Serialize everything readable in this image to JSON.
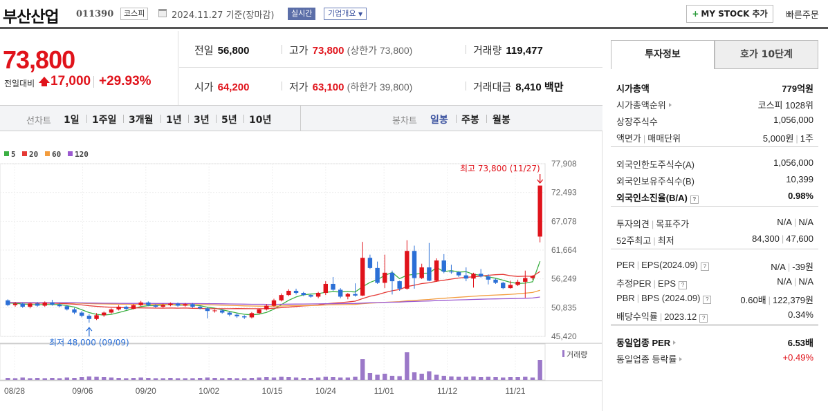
{
  "header": {
    "title": "부산산업",
    "code": "011390",
    "market": "코스피",
    "date_text": "2024.11.27  기준(장마감)",
    "realtime_label": "실시간",
    "company_label": "기업개요",
    "mystock_label": "MY STOCK 추가",
    "quick_order_label": "빠른주문"
  },
  "summary": {
    "price": "73,800",
    "change_label": "전일대비",
    "change_value": "17,000",
    "change_pct": "+29.93%",
    "prev_close_label": "전일",
    "prev_close": "56,800",
    "high_label": "고가",
    "high": "73,800",
    "upper_limit": "(상한가 73,800)",
    "volume_label": "거래량",
    "volume": "119,477",
    "open_label": "시가",
    "open": "64,200",
    "low_label": "저가",
    "low": "63,100",
    "lower_limit": "(하한가 39,800)",
    "amount_label": "거래대금",
    "amount": "8,410",
    "amount_unit": "백만"
  },
  "period_bar": {
    "line_label": "선차트",
    "line_items": [
      "1일",
      "1주일",
      "3개월",
      "1년",
      "3년",
      "5년",
      "10년"
    ],
    "candle_label": "봉차트",
    "candle_items": [
      "일봉",
      "주봉",
      "월봉"
    ],
    "active_candle": "일봉"
  },
  "chart_data": {
    "type": "candlestick",
    "legend": [
      {
        "name": "5",
        "color": "#3cb043"
      },
      {
        "name": "20",
        "color": "#e53935"
      },
      {
        "name": "60",
        "color": "#f39c3d"
      },
      {
        "name": "120",
        "color": "#9b59d0"
      }
    ],
    "y_ticks": [
      "77,908",
      "72,493",
      "67,078",
      "61,664",
      "56,249",
      "50,835",
      "45,420"
    ],
    "ylim": [
      45420,
      77908
    ],
    "x_ticks": [
      "08/28",
      "09/06",
      "09/20",
      "10/02",
      "10/15",
      "10/24",
      "11/01",
      "11/12",
      "11/21"
    ],
    "max_annotation": "최고 73,800 (11/27)",
    "min_annotation": "최저 48,000 (09/09)",
    "volume_label": "거래량",
    "candles": [
      [
        52200,
        51300,
        52400,
        51100
      ],
      [
        51300,
        51600,
        51900,
        51000
      ],
      [
        51600,
        51000,
        51800,
        50800
      ],
      [
        51000,
        51600,
        51800,
        50700
      ],
      [
        51600,
        51200,
        51900,
        51000
      ],
      [
        51200,
        51800,
        52000,
        51000
      ],
      [
        51800,
        51400,
        52300,
        51200
      ],
      [
        51400,
        51100,
        51700,
        50900
      ],
      [
        51100,
        50500,
        51300,
        50300
      ],
      [
        50500,
        49900,
        50800,
        49600
      ],
      [
        49900,
        49300,
        50200,
        49000
      ],
      [
        49300,
        48700,
        49600,
        48000
      ],
      [
        48700,
        49400,
        49800,
        48500
      ],
      [
        49400,
        49900,
        50100,
        49100
      ],
      [
        49900,
        50500,
        50700,
        49700
      ],
      [
        50500,
        51000,
        51300,
        50300
      ],
      [
        51000,
        50600,
        51200,
        50400
      ],
      [
        50600,
        51300,
        51500,
        50500
      ],
      [
        51300,
        51800,
        52100,
        51100
      ],
      [
        51800,
        51300,
        52000,
        51100
      ],
      [
        51300,
        51000,
        51500,
        50800
      ],
      [
        51000,
        51300,
        51600,
        50800
      ],
      [
        51300,
        51600,
        51800,
        51100
      ],
      [
        51600,
        51200,
        51800,
        51000
      ],
      [
        51200,
        51500,
        51700,
        51000
      ],
      [
        51500,
        51000,
        51700,
        50800
      ],
      [
        51000,
        50700,
        51200,
        50500
      ],
      [
        50700,
        50200,
        50900,
        48800
      ],
      [
        50200,
        50300,
        50500,
        49900
      ],
      [
        50300,
        49900,
        50500,
        49700
      ],
      [
        49900,
        49500,
        50100,
        49200
      ],
      [
        49500,
        49200,
        49800,
        48900
      ],
      [
        49200,
        49000,
        49400,
        48700
      ],
      [
        49000,
        49800,
        50000,
        48800
      ],
      [
        49800,
        50500,
        50700,
        49600
      ],
      [
        50500,
        51200,
        51500,
        50300
      ],
      [
        51200,
        52200,
        52500,
        51000
      ],
      [
        52200,
        53200,
        53500,
        52000
      ],
      [
        53200,
        54000,
        54300,
        53000
      ],
      [
        54000,
        53600,
        54400,
        53300
      ],
      [
        53600,
        53200,
        53800,
        53000
      ],
      [
        53200,
        52900,
        53400,
        52700
      ],
      [
        52900,
        53600,
        53800,
        52600
      ],
      [
        53600,
        55300,
        55800,
        53200
      ],
      [
        55300,
        54200,
        56600,
        54000
      ],
      [
        54200,
        52900,
        54500,
        52600
      ],
      [
        52900,
        53400,
        53600,
        52400
      ],
      [
        53400,
        53100,
        55400,
        52900
      ],
      [
        53100,
        60200,
        63200,
        53000
      ],
      [
        60200,
        58300,
        60800,
        58100
      ],
      [
        58300,
        55500,
        59500,
        55300
      ],
      [
        55500,
        57400,
        60800,
        54500
      ],
      [
        57400,
        55800,
        57800,
        53300
      ],
      [
        55800,
        54400,
        55900,
        54000
      ],
      [
        54400,
        61500,
        63500,
        54200
      ],
      [
        61500,
        56400,
        62500,
        54400
      ],
      [
        56400,
        58400,
        59100,
        56200
      ],
      [
        58400,
        55900,
        63000,
        55800
      ],
      [
        55900,
        59700,
        60100,
        55700
      ],
      [
        59700,
        57600,
        60900,
        57300
      ],
      [
        57600,
        57500,
        58900,
        57200
      ],
      [
        57500,
        56900,
        57700,
        56600
      ],
      [
        56900,
        56300,
        58400,
        55800
      ],
      [
        56300,
        57200,
        57400,
        54600
      ],
      [
        57200,
        56700,
        58100,
        56500
      ],
      [
        56700,
        56100,
        57100,
        55200
      ],
      [
        56100,
        55500,
        56300,
        55300
      ],
      [
        55500,
        54500,
        55700,
        54300
      ],
      [
        54500,
        55100,
        55900,
        54400
      ],
      [
        55100,
        55700,
        56100,
        54900
      ],
      [
        55700,
        56400,
        57800,
        52700
      ],
      [
        56400,
        56800,
        56900,
        56100
      ],
      [
        64200,
        73800,
        73800,
        63100
      ]
    ],
    "volumes": [
      6,
      5,
      7,
      5,
      6,
      5,
      6,
      5,
      7,
      6,
      8,
      10,
      9,
      8,
      7,
      6,
      5,
      6,
      7,
      6,
      5,
      5,
      6,
      5,
      5,
      5,
      6,
      7,
      6,
      5,
      6,
      5,
      5,
      6,
      7,
      8,
      7,
      9,
      8,
      7,
      6,
      6,
      7,
      9,
      8,
      7,
      7,
      9,
      60,
      20,
      15,
      18,
      12,
      11,
      80,
      22,
      18,
      25,
      15,
      12,
      10,
      9,
      9,
      10,
      8,
      9,
      8,
      7,
      8,
      8,
      9,
      7,
      58
    ]
  },
  "invest": {
    "tab_active": "투자정보",
    "tab_inactive": "호가 10단계",
    "rows": [
      {
        "k": "시가총액",
        "v": "779억원",
        "kb": true,
        "vb": true
      },
      {
        "k": "시가총액순위",
        "v": "코스피 1028위",
        "tri": true
      },
      {
        "k": "상장주식수",
        "v": "1,056,000"
      },
      {
        "k": "액면가",
        "k2": "매매단위",
        "v": "5,000원",
        "v2": "1주"
      },
      {
        "k": "외국인한도주식수(A)",
        "v": "1,056,000"
      },
      {
        "k": "외국인보유주식수(B)",
        "v": "10,399"
      },
      {
        "k": "외국인소진율(B/A)",
        "v": "0.98%",
        "kb": true,
        "vb": true,
        "q": true
      },
      {
        "k": "투자의견",
        "k2": "목표주가",
        "v": "N/A",
        "v2": "N/A"
      },
      {
        "k": "52주최고",
        "k2": "최저",
        "v": "84,300",
        "v2": "47,600"
      },
      {
        "k": "PER",
        "k2": "EPS(2024.09)",
        "v": "N/A",
        "v2": "-39원",
        "q2": true
      },
      {
        "k": "추정PER",
        "k2": "EPS",
        "v": "N/A",
        "v2": "N/A",
        "q2": true
      },
      {
        "k": "PBR",
        "k2": "BPS (2024.09)",
        "v": "0.60배",
        "v2": "122,379원",
        "q2": true
      },
      {
        "k": "배당수익률",
        "k2": "2023.12",
        "v": "0.34%",
        "q2": true
      },
      {
        "k": "동일업종 PER",
        "v": "6.53배",
        "kb": true,
        "vb": true,
        "tri": true
      },
      {
        "k": "동일업종 등락률",
        "v": "+0.49%",
        "red": true,
        "tri": true
      }
    ]
  }
}
